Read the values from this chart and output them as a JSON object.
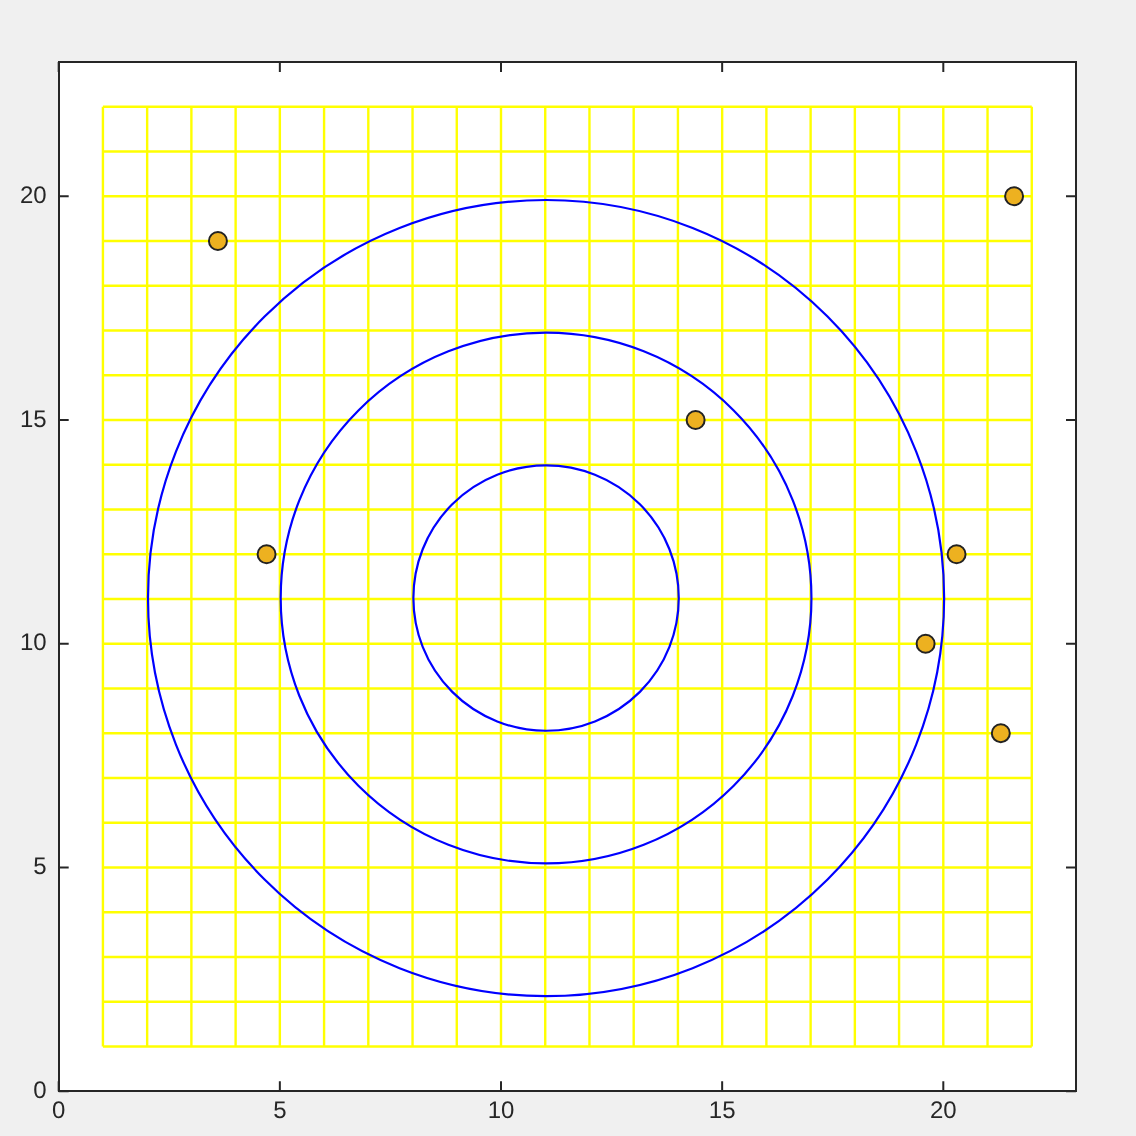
{
  "chart_data": {
    "type": "line",
    "xlim": [
      0,
      23
    ],
    "xticks": [
      0,
      5,
      10,
      15,
      20
    ],
    "ylim": [
      0,
      23
    ],
    "yticks": [
      0,
      5,
      10,
      15,
      20
    ],
    "grid": false,
    "legend": false,
    "series": [
      {
        "color": "#ffff00",
        "x": [
          1,
          22
        ],
        "values": [
          1,
          1
        ]
      },
      {
        "color": "#ffff00",
        "x": [
          1,
          22
        ],
        "values": [
          2,
          2
        ]
      },
      {
        "color": "#ffff00",
        "x": [
          1,
          22
        ],
        "values": [
          3,
          3
        ]
      },
      {
        "color": "#ffff00",
        "x": [
          1,
          22
        ],
        "values": [
          4,
          4
        ]
      },
      {
        "color": "#ffff00",
        "x": [
          1,
          22
        ],
        "values": [
          5,
          5
        ]
      },
      {
        "color": "#ffff00",
        "x": [
          1,
          22
        ],
        "values": [
          6,
          6
        ]
      },
      {
        "color": "#ffff00",
        "x": [
          1,
          22
        ],
        "values": [
          7,
          7
        ]
      },
      {
        "color": "#ffff00",
        "x": [
          1,
          22
        ],
        "values": [
          8,
          8
        ]
      },
      {
        "color": "#ffff00",
        "x": [
          1,
          22
        ],
        "values": [
          9,
          9
        ]
      },
      {
        "color": "#ffff00",
        "x": [
          1,
          22
        ],
        "values": [
          10,
          10
        ]
      },
      {
        "color": "#ffff00",
        "x": [
          1,
          22
        ],
        "values": [
          11,
          11
        ]
      },
      {
        "color": "#ffff00",
        "x": [
          1,
          22
        ],
        "values": [
          12,
          12
        ]
      },
      {
        "color": "#ffff00",
        "x": [
          1,
          22
        ],
        "values": [
          13,
          13
        ]
      },
      {
        "color": "#ffff00",
        "x": [
          1,
          22
        ],
        "values": [
          14,
          14
        ]
      },
      {
        "color": "#ffff00",
        "x": [
          1,
          22
        ],
        "values": [
          15,
          15
        ]
      },
      {
        "color": "#ffff00",
        "x": [
          1,
          22
        ],
        "values": [
          16,
          16
        ]
      },
      {
        "color": "#ffff00",
        "x": [
          1,
          22
        ],
        "values": [
          17,
          17
        ]
      },
      {
        "color": "#ffff00",
        "x": [
          1,
          22
        ],
        "values": [
          18,
          18
        ]
      },
      {
        "color": "#ffff00",
        "x": [
          1,
          22
        ],
        "values": [
          19,
          19
        ]
      },
      {
        "color": "#ffff00",
        "x": [
          1,
          22
        ],
        "values": [
          20,
          20
        ]
      },
      {
        "color": "#ffff00",
        "x": [
          1,
          22
        ],
        "values": [
          21,
          21
        ]
      },
      {
        "color": "#ffff00",
        "x": [
          1,
          22
        ],
        "values": [
          22,
          22
        ]
      },
      {
        "color": "#ffff00",
        "x": [
          1,
          1
        ],
        "values": [
          1,
          22
        ]
      },
      {
        "color": "#ffff00",
        "x": [
          2,
          2
        ],
        "values": [
          1,
          22
        ]
      },
      {
        "color": "#ffff00",
        "x": [
          3,
          3
        ],
        "values": [
          1,
          22
        ]
      },
      {
        "color": "#ffff00",
        "x": [
          4,
          4
        ],
        "values": [
          1,
          22
        ]
      },
      {
        "color": "#ffff00",
        "x": [
          5,
          5
        ],
        "values": [
          1,
          22
        ]
      },
      {
        "color": "#ffff00",
        "x": [
          6,
          6
        ],
        "values": [
          1,
          22
        ]
      },
      {
        "color": "#ffff00",
        "x": [
          7,
          7
        ],
        "values": [
          1,
          22
        ]
      },
      {
        "color": "#ffff00",
        "x": [
          8,
          8
        ],
        "values": [
          1,
          22
        ]
      },
      {
        "color": "#ffff00",
        "x": [
          9,
          9
        ],
        "values": [
          1,
          22
        ]
      },
      {
        "color": "#ffff00",
        "x": [
          10,
          10
        ],
        "values": [
          1,
          22
        ]
      },
      {
        "color": "#ffff00",
        "x": [
          11,
          11
        ],
        "values": [
          1,
          22
        ]
      },
      {
        "color": "#ffff00",
        "x": [
          12,
          12
        ],
        "values": [
          1,
          22
        ]
      },
      {
        "color": "#ffff00",
        "x": [
          13,
          13
        ],
        "values": [
          1,
          22
        ]
      },
      {
        "color": "#ffff00",
        "x": [
          14,
          14
        ],
        "values": [
          1,
          22
        ]
      },
      {
        "color": "#ffff00",
        "x": [
          15,
          15
        ],
        "values": [
          1,
          22
        ]
      },
      {
        "color": "#ffff00",
        "x": [
          16,
          16
        ],
        "values": [
          1,
          22
        ]
      },
      {
        "color": "#ffff00",
        "x": [
          17,
          17
        ],
        "values": [
          1,
          22
        ]
      },
      {
        "color": "#ffff00",
        "x": [
          18,
          18
        ],
        "values": [
          1,
          22
        ]
      },
      {
        "color": "#ffff00",
        "x": [
          19,
          19
        ],
        "values": [
          1,
          22
        ]
      },
      {
        "color": "#ffff00",
        "x": [
          20,
          20
        ],
        "values": [
          1,
          22
        ]
      },
      {
        "color": "#ffff00",
        "x": [
          21,
          21
        ],
        "values": [
          1,
          22
        ]
      },
      {
        "color": "#ffff00",
        "x": [
          22,
          22
        ],
        "values": [
          1,
          22
        ]
      },
      {
        "type": "scatter",
        "color": "#edb120",
        "marker": "circle",
        "x": [
          3.6,
          4.7,
          14.4,
          19.6,
          20.3,
          21.3,
          21.6
        ],
        "values": [
          19,
          12,
          15,
          10,
          12,
          8,
          20
        ]
      }
    ]
  }
}
